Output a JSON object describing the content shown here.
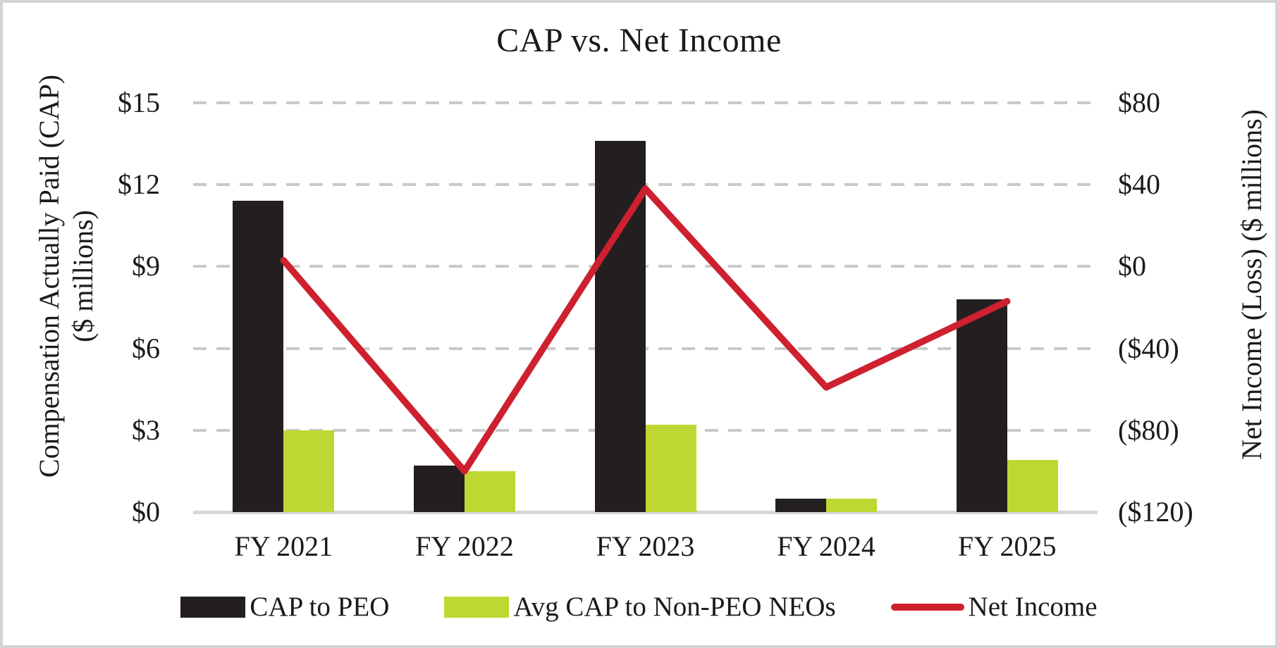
{
  "chart_data": {
    "type": "combo-bar-line",
    "title": "CAP vs. Net Income",
    "categories": [
      "FY 2021",
      "FY 2022",
      "FY 2023",
      "FY 2024",
      "FY 2025"
    ],
    "series": [
      {
        "name": "CAP to PEO",
        "type": "bar",
        "axis": "left",
        "color": "#231f20",
        "values": [
          11.4,
          1.7,
          13.6,
          0.5,
          7.8
        ]
      },
      {
        "name": "Avg CAP to Non-PEO NEOs",
        "type": "bar",
        "axis": "left",
        "color": "#bfd732",
        "values": [
          3.0,
          1.5,
          3.2,
          0.5,
          1.9
        ]
      },
      {
        "name": "Net Income",
        "type": "line",
        "axis": "right",
        "color": "#ce202f",
        "values": [
          3,
          -100,
          38,
          -59,
          -17
        ]
      }
    ],
    "left_axis": {
      "title_line1": "Compensation Actually Paid (CAP)",
      "title_line2": "($ millions)",
      "min": 0,
      "max": 15,
      "tick_labels": [
        "$15",
        "$12",
        "$9",
        "$6",
        "$3",
        "$0"
      ],
      "tick_values": [
        15,
        12,
        9,
        6,
        3,
        0
      ]
    },
    "right_axis": {
      "title": "Net Income (Loss) ($ millions)",
      "min": -120,
      "max": 80,
      "tick_labels": [
        "$80",
        "$40",
        "$0",
        "($40)",
        "($80)",
        "($120)"
      ],
      "tick_values": [
        80,
        40,
        0,
        -40,
        -80,
        -120
      ]
    },
    "grid": {
      "style": "dashed",
      "color": "#c9c9c9",
      "baseline_color": "#d6d6d6"
    },
    "legend": [
      {
        "label": "CAP to PEO",
        "swatch": "bar",
        "color": "#231f20"
      },
      {
        "label": "Avg CAP to Non-PEO NEOs",
        "swatch": "bar",
        "color": "#bfd732"
      },
      {
        "label": "Net Income",
        "swatch": "line",
        "color": "#ce202f"
      }
    ]
  }
}
